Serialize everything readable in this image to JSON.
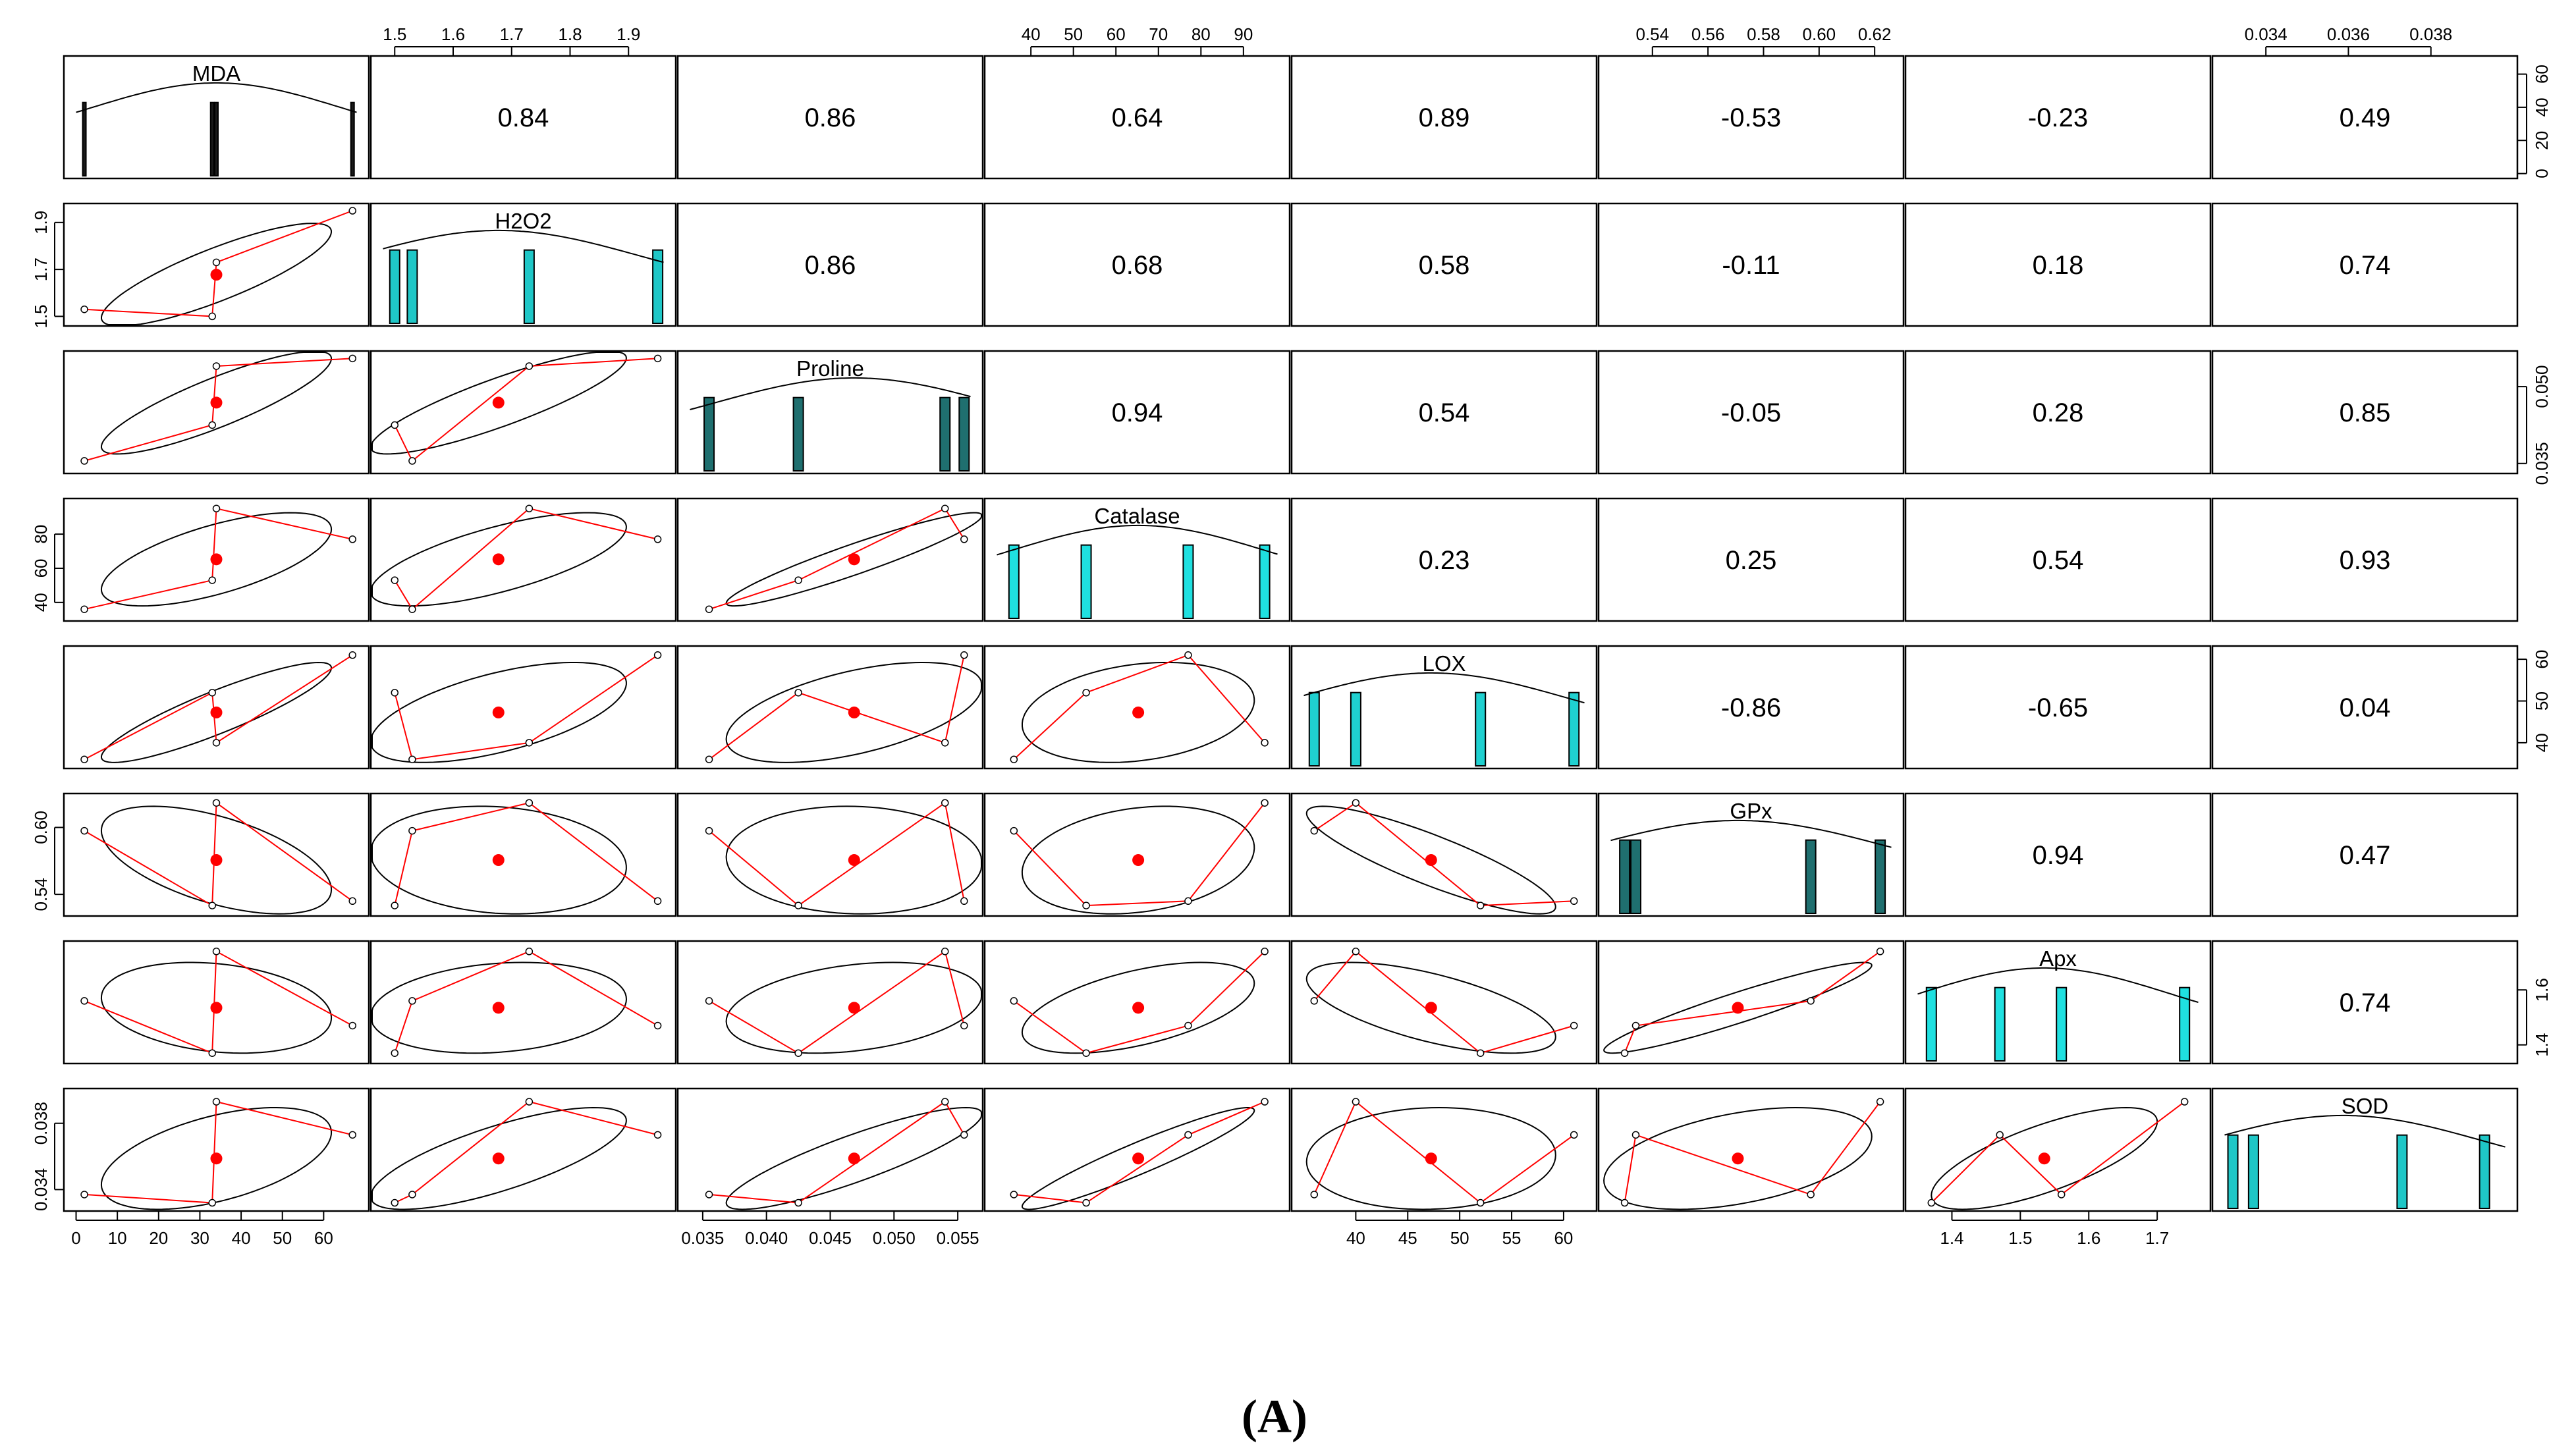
{
  "chart_data": {
    "type": "scatter",
    "kind": "pairs-panels",
    "caption": "(A)",
    "variables": [
      "MDA",
      "H2O2",
      "Proline",
      "Catalase",
      "LOX",
      "GPx",
      "Apx",
      "SOD"
    ],
    "observations": {
      "MDA": [
        2,
        33,
        34,
        67
      ],
      "H2O2": [
        1.53,
        1.5,
        1.73,
        1.95
      ],
      "Proline": [
        0.0355,
        0.0425,
        0.054,
        0.0555
      ],
      "Catalase": [
        36,
        53,
        95,
        77
      ],
      "LOX": [
        36,
        52,
        40,
        61
      ],
      "GPx": [
        0.597,
        0.53,
        0.622,
        0.534
      ],
      "Apx": [
        1.56,
        1.37,
        1.74,
        1.47
      ],
      "SOD": [
        0.0337,
        0.0332,
        0.0393,
        0.0373
      ]
    },
    "ranges": {
      "MDA": [
        0,
        68
      ],
      "H2O2": [
        1.48,
        1.96
      ],
      "Proline": [
        0.034,
        0.056
      ],
      "Catalase": [
        32,
        98
      ],
      "LOX": [
        35,
        62
      ],
      "GPx": [
        0.525,
        0.626
      ],
      "Apx": [
        1.35,
        1.76
      ],
      "SOD": [
        0.033,
        0.0398
      ]
    },
    "correlations": [
      [
        null,
        "0.84",
        "0.86",
        "0.64",
        "0.89",
        "-0.53",
        "-0.23",
        "0.49"
      ],
      [
        null,
        null,
        "0.86",
        "0.68",
        "0.58",
        "-0.11",
        "0.18",
        "0.74"
      ],
      [
        null,
        null,
        null,
        "0.94",
        "0.54",
        "-0.05",
        "0.28",
        "0.85"
      ],
      [
        null,
        null,
        null,
        null,
        "0.23",
        "0.25",
        "0.54",
        "0.93"
      ],
      [
        null,
        null,
        null,
        null,
        null,
        "-0.86",
        "-0.65",
        "0.04"
      ],
      [
        null,
        null,
        null,
        null,
        null,
        null,
        "0.94",
        "0.47"
      ],
      [
        null,
        null,
        null,
        null,
        null,
        null,
        null,
        "0.74"
      ]
    ],
    "axes": {
      "top": [
        {
          "col": 1,
          "ticks": [
            "1.5",
            "1.6",
            "1.7",
            "1.8",
            "1.9"
          ],
          "values": [
            1.5,
            1.6,
            1.7,
            1.8,
            1.9
          ]
        },
        {
          "col": 3,
          "ticks": [
            "40",
            "50",
            "60",
            "70",
            "80",
            "90"
          ],
          "values": [
            40,
            50,
            60,
            70,
            80,
            90
          ]
        },
        {
          "col": 5,
          "ticks": [
            "0.54",
            "0.56",
            "0.58",
            "0.60",
            "0.62"
          ],
          "values": [
            0.54,
            0.56,
            0.58,
            0.6,
            0.62
          ]
        },
        {
          "col": 7,
          "ticks": [
            "0.034",
            "0.036",
            "0.038"
          ],
          "values": [
            0.034,
            0.036,
            0.038
          ]
        }
      ],
      "bottom": [
        {
          "col": 0,
          "ticks": [
            "0",
            "10",
            "20",
            "30",
            "40",
            "50",
            "60"
          ],
          "values": [
            0,
            10,
            20,
            30,
            40,
            50,
            60
          ]
        },
        {
          "col": 2,
          "ticks": [
            "0.035",
            "0.040",
            "0.045",
            "0.050",
            "0.055"
          ],
          "values": [
            0.035,
            0.04,
            0.045,
            0.05,
            0.055
          ]
        },
        {
          "col": 4,
          "ticks": [
            "40",
            "45",
            "50",
            "55",
            "60"
          ],
          "values": [
            40,
            45,
            50,
            55,
            60
          ]
        },
        {
          "col": 6,
          "ticks": [
            "1.4",
            "1.5",
            "1.6",
            "1.7"
          ],
          "values": [
            1.4,
            1.5,
            1.6,
            1.7
          ]
        }
      ],
      "left": [
        {
          "row": 1,
          "ticks": [
            "1.5",
            "1.7",
            "1.9"
          ],
          "values": [
            1.5,
            1.7,
            1.9
          ]
        },
        {
          "row": 3,
          "ticks": [
            "40",
            "60",
            "80"
          ],
          "values": [
            40,
            60,
            80
          ]
        },
        {
          "row": 5,
          "ticks": [
            "0.54",
            "0.60"
          ],
          "values": [
            0.54,
            0.6
          ]
        },
        {
          "row": 7,
          "ticks": [
            "0.034",
            "0.038"
          ],
          "values": [
            0.034,
            0.038
          ]
        }
      ],
      "right": [
        {
          "row": 0,
          "ticks": [
            "0",
            "20",
            "40",
            "60"
          ],
          "values": [
            0,
            20,
            40,
            60
          ],
          "range": [
            0,
            68
          ]
        },
        {
          "row": 2,
          "ticks": [
            "0.035",
            "0.050"
          ],
          "values": [
            0.035,
            0.05
          ]
        },
        {
          "row": 4,
          "ticks": [
            "40",
            "50",
            "60"
          ],
          "values": [
            40,
            50,
            60
          ]
        },
        {
          "row": 6,
          "ticks": [
            "1.4",
            "1.6"
          ],
          "values": [
            1.4,
            1.6
          ]
        }
      ]
    },
    "diagonal_bars": {
      "MDA": {
        "color": "#1a1a1a"
      },
      "H2O2": {
        "color": "#1fc7c7"
      },
      "Proline": {
        "color": "#1f6f6f"
      },
      "Catalase": {
        "color": "#1fe0e0"
      },
      "LOX": {
        "color": "#1fd0d0"
      },
      "GPx": {
        "color": "#1f6f6f"
      },
      "Apx": {
        "color": "#1fe0e0"
      },
      "SOD": {
        "color": "#1fc7c7"
      }
    },
    "colors": {
      "points": "#ff0000",
      "smooth": "#ff0000",
      "ellipse": "#000000",
      "frame": "#000000"
    }
  }
}
